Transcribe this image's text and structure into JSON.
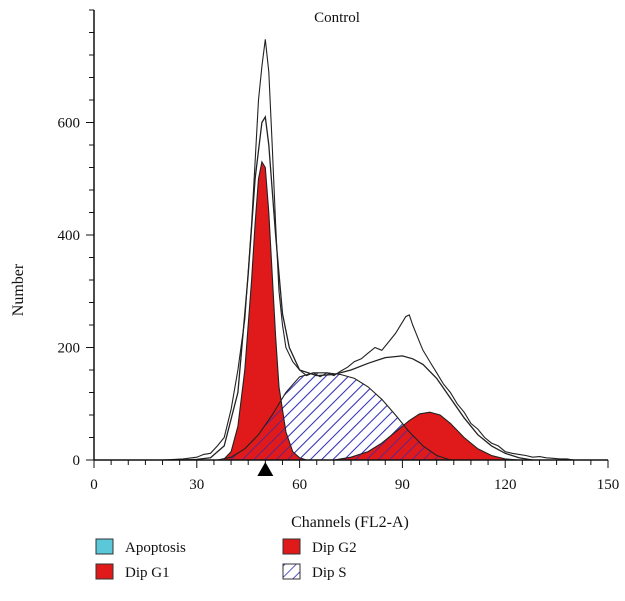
{
  "chart_data": {
    "type": "area",
    "title": "Control",
    "xlabel": "Channels (FL2-A)",
    "ylabel": "Number",
    "xlim": [
      0,
      150
    ],
    "ylim": [
      0,
      800
    ],
    "x_ticks": [
      0,
      30,
      60,
      90,
      120,
      150
    ],
    "y_ticks": [
      0,
      200,
      400,
      600
    ],
    "grid": false,
    "legend_position": "bottom-left",
    "marker_x": 50,
    "colors": {
      "apoptosis": "#5bc8d9",
      "dip_g1": "#e01a1a",
      "dip_g2": "#e01a1a",
      "dip_s_hatch": "#2b2bb8",
      "line": "#222222"
    },
    "legend": [
      {
        "key": "apoptosis",
        "label": "Apoptosis"
      },
      {
        "key": "dip_g2",
        "label": "Dip G2"
      },
      {
        "key": "dip_g1",
        "label": "Dip G1"
      },
      {
        "key": "dip_s",
        "label": "Dip S"
      }
    ],
    "series": [
      {
        "name": "Dip G1",
        "x": [
          38,
          40,
          42,
          44,
          46,
          47,
          48,
          49,
          50,
          51,
          52,
          53,
          54,
          56,
          58,
          60,
          62
        ],
        "y": [
          2,
          15,
          60,
          160,
          320,
          420,
          500,
          530,
          520,
          440,
          330,
          220,
          130,
          50,
          15,
          4,
          0
        ]
      },
      {
        "name": "Dip S",
        "x": [
          36,
          40,
          44,
          48,
          52,
          56,
          60,
          64,
          68,
          72,
          76,
          80,
          84,
          88,
          92,
          96,
          100,
          104
        ],
        "y": [
          0,
          5,
          20,
          45,
          80,
          120,
          148,
          155,
          155,
          152,
          145,
          130,
          108,
          80,
          50,
          25,
          8,
          0
        ]
      },
      {
        "name": "Dip G2",
        "x": [
          70,
          75,
          80,
          84,
          88,
          92,
          95,
          98,
          101,
          104,
          108,
          112,
          116,
          120,
          124
        ],
        "y": [
          0,
          5,
          15,
          30,
          50,
          70,
          82,
          85,
          80,
          65,
          40,
          20,
          8,
          2,
          0
        ]
      },
      {
        "name": "Model fit",
        "x": [
          26,
          30,
          34,
          38,
          42,
          45,
          47,
          49,
          50,
          51,
          53,
          55,
          57,
          60,
          65,
          70,
          75,
          80,
          85,
          90,
          93,
          96,
          100,
          104,
          108,
          112,
          116,
          120,
          124,
          128
        ],
        "y": [
          0,
          1,
          4,
          25,
          120,
          330,
          500,
          600,
          610,
          560,
          400,
          260,
          200,
          160,
          150,
          152,
          160,
          172,
          182,
          185,
          180,
          170,
          145,
          110,
          75,
          45,
          25,
          12,
          4,
          0
        ]
      },
      {
        "name": "Histogram",
        "x": [
          20,
          26,
          30,
          32,
          34,
          36,
          38,
          40,
          42,
          44,
          46,
          47,
          48,
          49,
          50,
          51,
          52,
          53,
          54,
          55,
          56,
          58,
          60,
          62,
          64,
          66,
          68,
          70,
          72,
          74,
          76,
          78,
          80,
          82,
          84,
          86,
          88,
          90,
          91,
          92,
          93,
          94,
          95,
          96,
          98,
          100,
          102,
          104,
          106,
          108,
          110,
          112,
          114,
          116,
          118,
          120,
          122,
          124,
          126,
          128,
          130,
          132,
          134,
          136,
          138,
          140
        ],
        "y": [
          0,
          2,
          5,
          10,
          12,
          25,
          40,
          90,
          160,
          250,
          420,
          530,
          640,
          700,
          748,
          690,
          560,
          420,
          300,
          240,
          200,
          175,
          160,
          150,
          155,
          148,
          155,
          150,
          158,
          165,
          175,
          180,
          190,
          200,
          195,
          210,
          225,
          245,
          255,
          258,
          240,
          225,
          210,
          195,
          175,
          155,
          135,
          120,
          100,
          85,
          65,
          55,
          40,
          30,
          25,
          15,
          12,
          10,
          8,
          5,
          6,
          4,
          3,
          2,
          2,
          0
        ]
      }
    ]
  }
}
